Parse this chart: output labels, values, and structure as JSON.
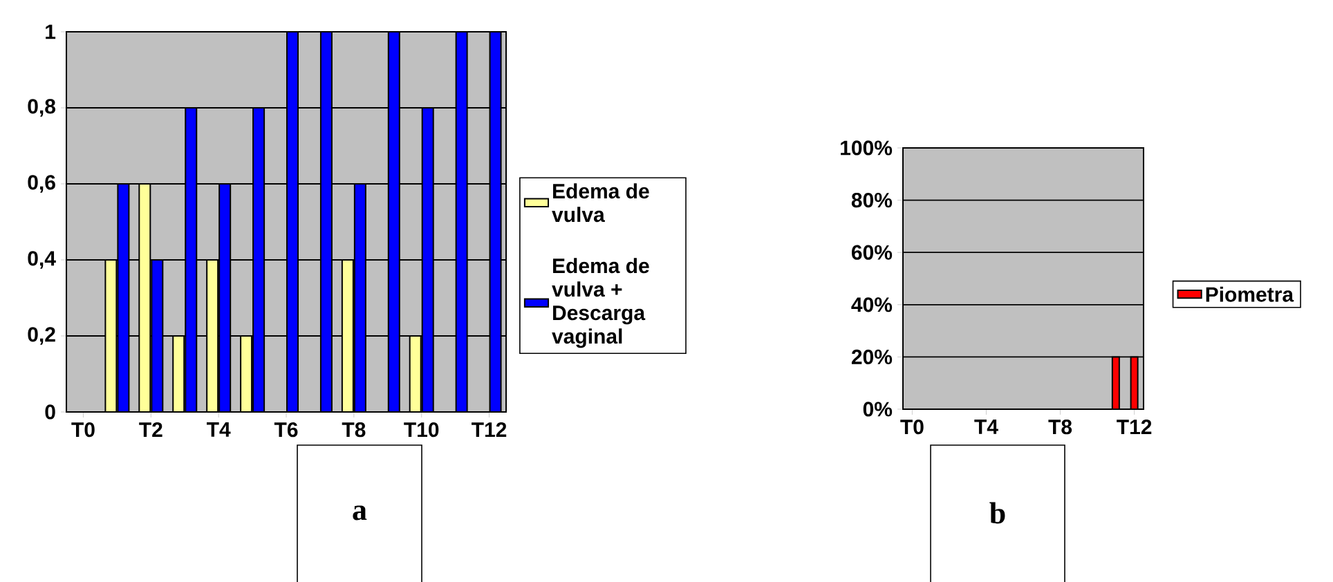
{
  "chart_data": [
    {
      "type": "bar",
      "categories": [
        "T0",
        null,
        "T2",
        null,
        "T4",
        null,
        "T6",
        null,
        "T8",
        null,
        "T10",
        null,
        "T12"
      ],
      "series": [
        {
          "name": "Edema de vulva",
          "color": "#ffff99",
          "values": [
            0,
            0.4,
            0.6,
            0.2,
            0.4,
            0.2,
            0,
            0,
            0.4,
            0,
            0.2,
            0,
            0
          ]
        },
        {
          "name": "Edema de vulva + Descarga vaginal",
          "color": "#0000ff",
          "values": [
            0,
            0.6,
            0.4,
            0.8,
            0.6,
            0.8,
            1,
            1,
            0.6,
            1,
            0.8,
            1,
            1
          ]
        }
      ],
      "ylim": [
        0,
        1
      ],
      "yticks": [
        0,
        {
          "value": 0.2,
          "label": "0,2"
        },
        {
          "value": 0.4,
          "label": "0,4"
        },
        {
          "value": 0.6,
          "label": "0,6"
        },
        {
          "value": 0.8,
          "label": "0,8"
        },
        1
      ],
      "grid": "y",
      "legend": "right",
      "annotations": [
        "a"
      ]
    },
    {
      "type": "bar",
      "categories": [
        "T0",
        null,
        null,
        null,
        "T4",
        null,
        null,
        null,
        "T8",
        null,
        null,
        null,
        "T12"
      ],
      "series": [
        {
          "name": "Piometra",
          "color": "#ff0000",
          "values": [
            0,
            0,
            0,
            0,
            0,
            0,
            0,
            0,
            0,
            0,
            0,
            20,
            20
          ]
        }
      ],
      "ylim": [
        0,
        100
      ],
      "yticks": [
        {
          "value": 0,
          "label": "0%"
        },
        {
          "value": 20,
          "label": "20%"
        },
        {
          "value": 40,
          "label": "40%"
        },
        {
          "value": 60,
          "label": "60%"
        },
        {
          "value": 80,
          "label": "80%"
        },
        {
          "value": 100,
          "label": "100%"
        }
      ],
      "grid": "y",
      "legend": "right",
      "annotations": [
        "b"
      ]
    }
  ]
}
